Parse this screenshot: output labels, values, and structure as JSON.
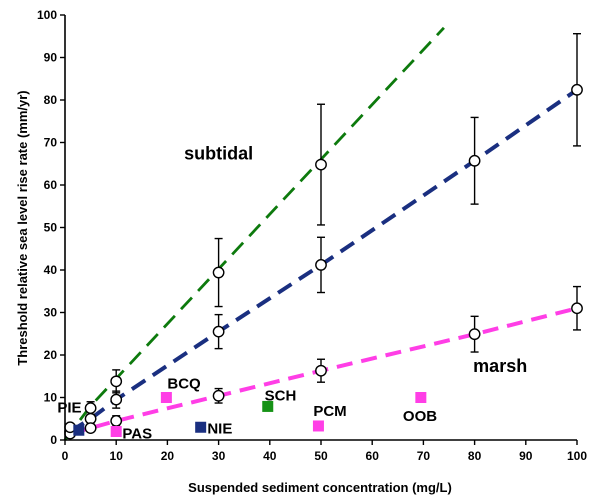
{
  "chart_data": {
    "type": "scatter",
    "title": "",
    "xlabel": "Suspended sediment concentration (mg/L)",
    "ylabel": "Threshold relative sea level rise rate (mm/yr)",
    "xlim": [
      0,
      100
    ],
    "ylim": [
      0,
      100
    ],
    "x_ticks": [
      "0",
      "10",
      "20",
      "30",
      "40",
      "50",
      "60",
      "70",
      "80",
      "90",
      "100"
    ],
    "y_ticks": [
      "0",
      "10",
      "20",
      "30",
      "40",
      "50",
      "60",
      "70",
      "80",
      "90",
      "100"
    ],
    "grid": false,
    "region_labels": [
      {
        "text": "subtidal",
        "x": 30,
        "y": 66
      },
      {
        "text": "marsh",
        "x": 85,
        "y": 16
      }
    ],
    "series": [
      {
        "line_color": "#0d7a0d",
        "style": "dashed",
        "x": [
          0,
          5,
          74
        ],
        "y": [
          0,
          8,
          97
        ]
      },
      {
        "line_color": "#1a2f80",
        "style": "dashed",
        "points": [
          {
            "x": 1,
            "y": 2,
            "err": 0
          },
          {
            "x": 5,
            "y": 5,
            "err": 1
          },
          {
            "x": 10,
            "y": 9.5,
            "err": 2
          },
          {
            "x": 30,
            "y": 25.5,
            "err": 4
          },
          {
            "x": 50,
            "y": 41.2,
            "err": 6.5
          },
          {
            "x": 80,
            "y": 65.7,
            "err": 10.2
          },
          {
            "x": 100,
            "y": 82.4,
            "err": 13.2
          }
        ]
      },
      {
        "line_color": "#ff3ee6",
        "style": "dashed",
        "points": [
          {
            "x": 1,
            "y": 1.5,
            "err": 0
          },
          {
            "x": 5,
            "y": 2.8,
            "err": 0.8
          },
          {
            "x": 10,
            "y": 4.5,
            "err": 1.2
          },
          {
            "x": 30,
            "y": 10.4,
            "err": 1.7
          },
          {
            "x": 50,
            "y": 16.3,
            "err": 2.7
          },
          {
            "x": 80,
            "y": 24.9,
            "err": 4.2
          },
          {
            "x": 100,
            "y": 31.0,
            "err": 5.1
          }
        ]
      },
      {
        "line_color": "#000000",
        "style": "open-circles",
        "points": [
          {
            "x": 1,
            "y": 3,
            "err": 0
          },
          {
            "x": 5,
            "y": 7.5,
            "err": 1.5
          },
          {
            "x": 10,
            "y": 13.8,
            "err": 2.7
          },
          {
            "x": 30,
            "y": 39.4,
            "err": 8
          },
          {
            "x": 50,
            "y": 64.8,
            "err": 14.2
          }
        ]
      }
    ],
    "sites": [
      {
        "label": "PIE",
        "x": 2.7,
        "y": 2.3,
        "color": "#1a2f80",
        "label_x": -1.5,
        "label_y": 6.5
      },
      {
        "label": "PAS",
        "x": 10,
        "y": 2.0,
        "color": "#ff3ee6",
        "label_x": 11.2,
        "label_y": 0.3
      },
      {
        "label": "BCQ",
        "x": 19.8,
        "y": 10,
        "color": "#ff3ee6",
        "label_x": 20,
        "label_y": 12.1
      },
      {
        "label": "NIE",
        "x": 26.5,
        "y": 3,
        "color": "#1a2f80",
        "label_x": 27.8,
        "label_y": 1.5
      },
      {
        "label": "SCH",
        "x": 39.6,
        "y": 7.9,
        "color": "#169216",
        "label_x": 39,
        "label_y": 9.3
      },
      {
        "label": "PCM",
        "x": 49.5,
        "y": 3.3,
        "color": "#ff3ee6",
        "label_x": 48.5,
        "label_y": 5.6
      },
      {
        "label": "OOB",
        "x": 69.5,
        "y": 10,
        "color": "#ff3ee6",
        "label_x": 66,
        "label_y": 4.5
      }
    ]
  }
}
